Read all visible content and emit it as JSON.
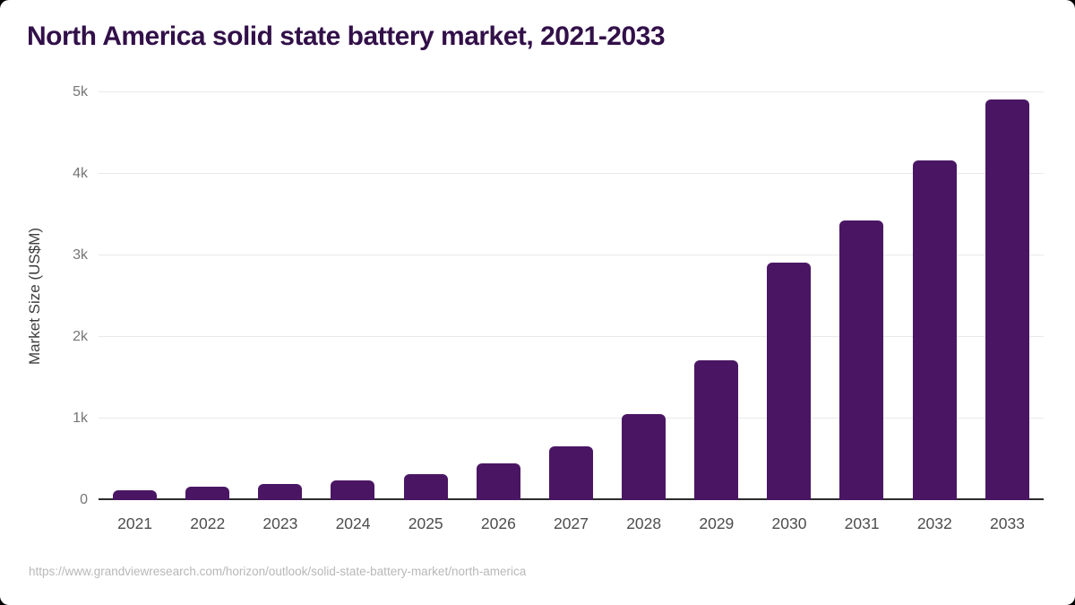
{
  "page": {
    "background": "#000000",
    "card_background": "#ffffff"
  },
  "header": {
    "title": "North America solid state battery market, 2021-2033"
  },
  "footer": {
    "source_url": "https://www.grandviewresearch.com/horizon/outlook/solid-state-battery-market/north-america"
  },
  "chart_data": {
    "type": "bar",
    "title": "North America solid state battery market, 2021-2033",
    "categories": [
      "2021",
      "2022",
      "2023",
      "2024",
      "2025",
      "2026",
      "2027",
      "2028",
      "2029",
      "2030",
      "2031",
      "2032",
      "2033"
    ],
    "values": [
      120,
      160,
      200,
      240,
      315,
      450,
      655,
      1055,
      1715,
      2915,
      3430,
      4170,
      4910
    ],
    "xlabel": "",
    "ylabel": "Market Size (US$M)",
    "ylim": [
      0,
      5000
    ],
    "yticks": [
      {
        "label": "0",
        "value": 0
      },
      {
        "label": "1k",
        "value": 1000
      },
      {
        "label": "2k",
        "value": 2000
      },
      {
        "label": "3k",
        "value": 3000
      },
      {
        "label": "4k",
        "value": 4000
      },
      {
        "label": "5k",
        "value": 5000
      }
    ],
    "grid": true,
    "legend": false,
    "bar_color": "#4a1663",
    "title_color": "#321049",
    "grid_color": "#e9e9e9",
    "axis_tick_color": "#757575",
    "x_tick_color": "#4d4d4d"
  }
}
